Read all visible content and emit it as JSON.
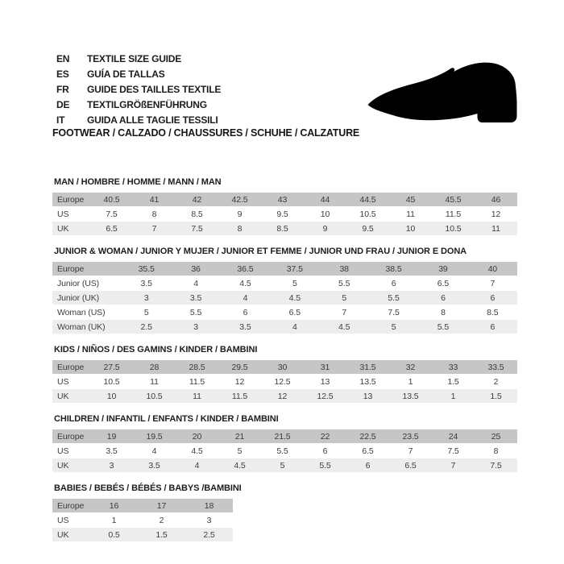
{
  "header": {
    "languages": [
      {
        "code": "EN",
        "label": "TEXTILE SIZE GUIDE"
      },
      {
        "code": "ES",
        "label": "GUÍA DE TALLAS"
      },
      {
        "code": "FR",
        "label": "GUIDE DES TAILLES TEXTILE"
      },
      {
        "code": "DE",
        "label": "TEXTILGRÖßENFÜHRUNG"
      },
      {
        "code": "IT",
        "label": "GUIDA ALLE TAGLIE TESSILI"
      }
    ],
    "category_line": "FOOTWEAR / CALZADO / CHAUSSURES / SCHUHE / CALZATURE",
    "shoe_icon": "shoe-silhouette-icon"
  },
  "colors": {
    "header_row_bg": "#c6c6c6",
    "alt_row_bg": "#ededed",
    "row_bg": "#ffffff",
    "text": "#3e3e3e",
    "title_text": "#1d1d1d",
    "shoe": "#000000"
  },
  "tables": [
    {
      "title": "MAN / HOMBRE / HOMME / MANN / MAN",
      "rows": [
        {
          "label": "Europe",
          "values": [
            "40.5",
            "41",
            "42",
            "42.5",
            "43",
            "44",
            "44.5",
            "45",
            "45.5",
            "46"
          ]
        },
        {
          "label": "US",
          "values": [
            "7.5",
            "8",
            "8.5",
            "9",
            "9.5",
            "10",
            "10.5",
            "11",
            "11.5",
            "12"
          ]
        },
        {
          "label": "UK",
          "values": [
            "6.5",
            "7",
            "7.5",
            "8",
            "8.5",
            "9",
            "9.5",
            "10",
            "10.5",
            "11"
          ]
        }
      ]
    },
    {
      "title": "JUNIOR & WOMAN / JUNIOR Y MUJER / JUNIOR ET FEMME / JUNIOR UND FRAU / JUNIOR E DONA",
      "rows": [
        {
          "label": "Europe",
          "values": [
            "35.5",
            "36",
            "36.5",
            "37.5",
            "38",
            "38.5",
            "39",
            "40"
          ]
        },
        {
          "label": "Junior (US)",
          "values": [
            "3.5",
            "4",
            "4.5",
            "5",
            "5.5",
            "6",
            "6.5",
            "7"
          ]
        },
        {
          "label": "Junior (UK)",
          "values": [
            "3",
            "3.5",
            "4",
            "4.5",
            "5",
            "5.5",
            "6",
            "6"
          ]
        },
        {
          "label": "Woman (US)",
          "values": [
            "5",
            "5.5",
            "6",
            "6.5",
            "7",
            "7.5",
            "8",
            "8.5"
          ]
        },
        {
          "label": "Woman (UK)",
          "values": [
            "2.5",
            "3",
            "3.5",
            "4",
            "4.5",
            "5",
            "5.5",
            "6"
          ]
        }
      ]
    },
    {
      "title": "KIDS / NIÑOS / DES GAMINS / KINDER / BAMBINI",
      "rows": [
        {
          "label": "Europe",
          "values": [
            "27.5",
            "28",
            "28.5",
            "29.5",
            "30",
            "31",
            "31.5",
            "32",
            "33",
            "33.5"
          ]
        },
        {
          "label": "US",
          "values": [
            "10.5",
            "11",
            "11.5",
            "12",
            "12.5",
            "13",
            "13.5",
            "1",
            "1.5",
            "2"
          ]
        },
        {
          "label": "UK",
          "values": [
            "10",
            "10.5",
            "11",
            "11.5",
            "12",
            "12.5",
            "13",
            "13.5",
            "1",
            "1.5"
          ]
        }
      ]
    },
    {
      "title": "CHILDREN / INFANTIL / ENFANTS / KINDER / BAMBINI",
      "rows": [
        {
          "label": "Europe",
          "values": [
            "19",
            "19.5",
            "20",
            "21",
            "21.5",
            "22",
            "22.5",
            "23.5",
            "24",
            "25"
          ]
        },
        {
          "label": "US",
          "values": [
            "3.5",
            "4",
            "4.5",
            "5",
            "5.5",
            "6",
            "6.5",
            "7",
            "7.5",
            "8"
          ]
        },
        {
          "label": "UK",
          "values": [
            "3",
            "3.5",
            "4",
            "4.5",
            "5",
            "5.5",
            "6",
            "6.5",
            "7",
            "7.5"
          ]
        }
      ]
    },
    {
      "title": "BABIES / BEBÉS / BÉBÉS / BABYS /BAMBINI",
      "rows": [
        {
          "label": "Europe",
          "values": [
            "16",
            "17",
            "18"
          ]
        },
        {
          "label": "US",
          "values": [
            "1",
            "2",
            "3"
          ]
        },
        {
          "label": "UK",
          "values": [
            "0.5",
            "1.5",
            "2.5"
          ]
        }
      ]
    }
  ]
}
